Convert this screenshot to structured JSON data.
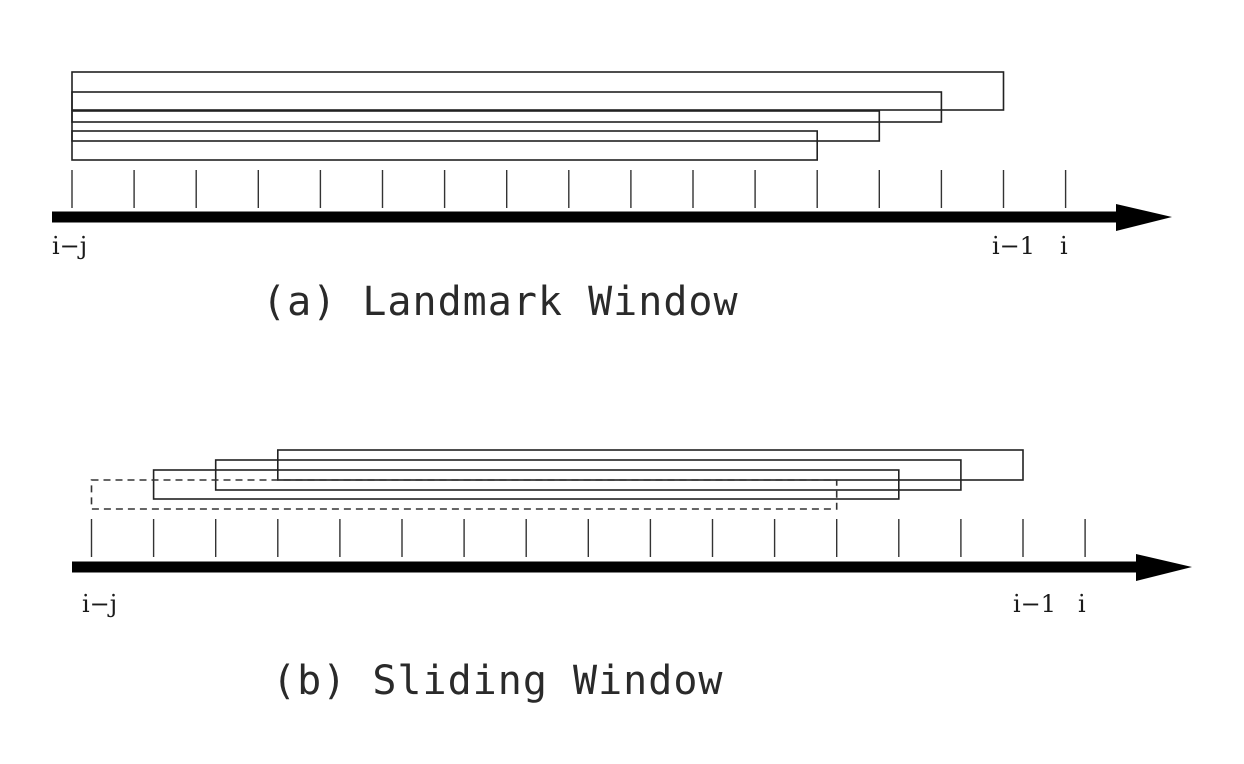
{
  "diagrams": [
    {
      "id": "landmark",
      "caption": "(a) Landmark Window",
      "labels": {
        "start": "i−j",
        "prev": "i−1",
        "current": "i"
      },
      "windows": [
        {
          "start_slot": 0,
          "end_slot": 15,
          "style": "solid"
        },
        {
          "start_slot": 0,
          "end_slot": 14,
          "style": "solid"
        },
        {
          "start_slot": 0,
          "end_slot": 13,
          "style": "solid"
        },
        {
          "start_slot": 0,
          "end_slot": 12,
          "style": "solid"
        }
      ]
    },
    {
      "id": "sliding",
      "caption": "(b) Sliding Window",
      "labels": {
        "start": "i−j",
        "prev": "i−1",
        "current": "i"
      },
      "windows": [
        {
          "start_slot": 3,
          "end_slot": 15,
          "style": "solid"
        },
        {
          "start_slot": 2,
          "end_slot": 14,
          "style": "solid"
        },
        {
          "start_slot": 1,
          "end_slot": 13,
          "style": "solid"
        },
        {
          "start_slot": 0,
          "end_slot": 12,
          "style": "dashed"
        }
      ]
    }
  ]
}
